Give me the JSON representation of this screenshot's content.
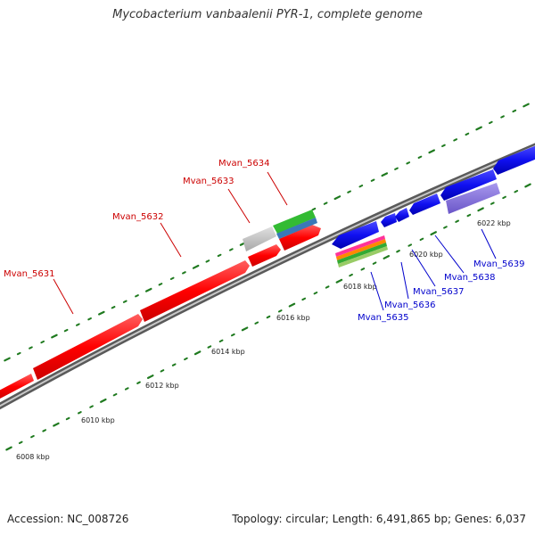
{
  "title": "Mycobacterium vanbaalenii PYR-1, complete genome",
  "footer": {
    "accession": "Accession: NC_008726",
    "topology": "Topology: circular; Length: 6,491,865 bp; Genes: 6,037"
  },
  "colors": {
    "backbone": "#8a8a8a",
    "forward": "#ff0000",
    "reverse": "#0000ee",
    "tick": "#1f7a1f",
    "label_forward": "#cc0000",
    "label_reverse": "#0000cc"
  },
  "scale_labels": [
    "6008 kbp",
    "6010 kbp",
    "6012 kbp",
    "6014 kbp",
    "6016 kbp",
    "6018 kbp",
    "6020 kbp",
    "6022 kbp"
  ],
  "genes_forward": [
    {
      "name": "Mvan_5631"
    },
    {
      "name": "Mvan_5632"
    },
    {
      "name": "Mvan_5633"
    },
    {
      "name": "Mvan_5634"
    }
  ],
  "genes_reverse": [
    {
      "name": "Mvan_5635"
    },
    {
      "name": "Mvan_5636"
    },
    {
      "name": "Mvan_5637"
    },
    {
      "name": "Mvan_5638"
    },
    {
      "name": "Mvan_5639"
    }
  ]
}
